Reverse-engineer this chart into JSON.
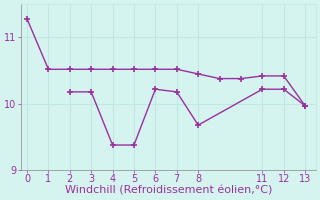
{
  "line1_x": [
    0,
    1,
    2,
    3,
    4,
    5,
    6,
    7,
    8,
    9,
    10,
    11,
    12,
    13
  ],
  "line1_y": [
    11.28,
    10.52,
    10.52,
    10.52,
    10.52,
    10.52,
    10.52,
    10.52,
    10.45,
    10.38,
    10.38,
    10.42,
    10.42,
    9.97
  ],
  "line2_x": [
    2,
    3,
    4,
    5,
    6,
    7,
    8,
    11,
    12,
    13
  ],
  "line2_y": [
    10.18,
    10.18,
    9.38,
    9.38,
    10.22,
    10.18,
    9.68,
    10.22,
    10.22,
    9.97
  ],
  "line_color": "#9930a0",
  "bg_color": "#d6f4ef",
  "xlabel": "Windchill (Refroidissement éolien,°C)",
  "xlim": [
    -0.3,
    13.5
  ],
  "ylim": [
    9.0,
    11.5
  ],
  "yticks": [
    9,
    10,
    11
  ],
  "xticks": [
    0,
    1,
    2,
    3,
    4,
    5,
    6,
    7,
    8,
    11,
    12,
    13
  ],
  "grid_color": "#c0e8e0",
  "tick_color": "#9930a0",
  "xlabel_color": "#9930a0",
  "xlabel_fontsize": 8,
  "tick_fontsize": 7,
  "marker": "+",
  "markersize": 5,
  "linewidth": 1.0
}
